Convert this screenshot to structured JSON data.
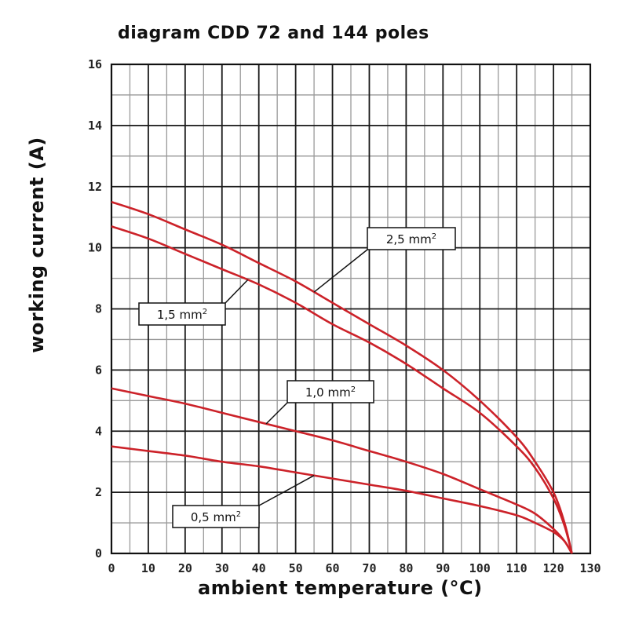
{
  "chart_data": {
    "type": "line",
    "title": "diagram CDD 72 and 144 poles",
    "xlabel": "ambient temperature (°C)",
    "ylabel": "working current (A)",
    "xlim": [
      0,
      130
    ],
    "ylim": [
      0,
      16
    ],
    "xticks": [
      0,
      10,
      20,
      30,
      40,
      50,
      60,
      70,
      80,
      90,
      100,
      110,
      120,
      130
    ],
    "yticks": [
      0,
      2,
      4,
      6,
      8,
      10,
      12,
      14,
      16
    ],
    "x_tick_labels": [
      "0",
      "10",
      "20",
      "30",
      "40",
      "50",
      "60",
      "70",
      "80",
      "90",
      "100",
      "110",
      "120",
      "130"
    ],
    "y_tick_labels": [
      "0",
      "2",
      "4",
      "6",
      "8",
      "10",
      "12",
      "14",
      "16"
    ],
    "grid": true,
    "line_color": "#cc2229",
    "series": [
      {
        "name": "2,5 mm²",
        "x": [
          0,
          10,
          20,
          30,
          40,
          50,
          60,
          70,
          80,
          90,
          100,
          110,
          115,
          120,
          123,
          125
        ],
        "y": [
          11.5,
          11.1,
          10.6,
          10.1,
          9.5,
          8.9,
          8.2,
          7.5,
          6.8,
          6.0,
          5.0,
          3.8,
          3.0,
          2.0,
          1.0,
          0
        ]
      },
      {
        "name": "1,5 mm²",
        "x": [
          0,
          10,
          20,
          30,
          40,
          50,
          60,
          70,
          80,
          90,
          100,
          110,
          115,
          120,
          123,
          125
        ],
        "y": [
          10.7,
          10.3,
          9.8,
          9.3,
          8.8,
          8.2,
          7.5,
          6.9,
          6.2,
          5.4,
          4.6,
          3.5,
          2.8,
          1.8,
          0.9,
          0
        ]
      },
      {
        "name": "1,0 mm²",
        "x": [
          0,
          10,
          20,
          30,
          40,
          50,
          60,
          70,
          80,
          90,
          100,
          110,
          115,
          120,
          123,
          125
        ],
        "y": [
          5.4,
          5.15,
          4.9,
          4.6,
          4.3,
          4.0,
          3.7,
          3.35,
          3.0,
          2.6,
          2.1,
          1.6,
          1.3,
          0.8,
          0.4,
          0
        ]
      },
      {
        "name": "0,5 mm²",
        "x": [
          0,
          10,
          20,
          30,
          40,
          50,
          60,
          70,
          80,
          90,
          100,
          110,
          115,
          120,
          123,
          125
        ],
        "y": [
          3.5,
          3.35,
          3.2,
          3.0,
          2.85,
          2.65,
          2.45,
          2.25,
          2.05,
          1.8,
          1.55,
          1.25,
          1.0,
          0.7,
          0.4,
          0
        ]
      }
    ],
    "annotations": [
      {
        "text": "2,5 mm",
        "sup": "2",
        "series": "2,5 mm²",
        "at_x": 55
      },
      {
        "text": "1,5 mm",
        "sup": "2",
        "series": "1,5 mm²",
        "at_x": 37
      },
      {
        "text": "1,0 mm",
        "sup": "2",
        "series": "1,0 mm²",
        "at_x": 42
      },
      {
        "text": "0,5 mm",
        "sup": "2",
        "series": "0,5 mm²",
        "at_x": 55
      }
    ]
  }
}
